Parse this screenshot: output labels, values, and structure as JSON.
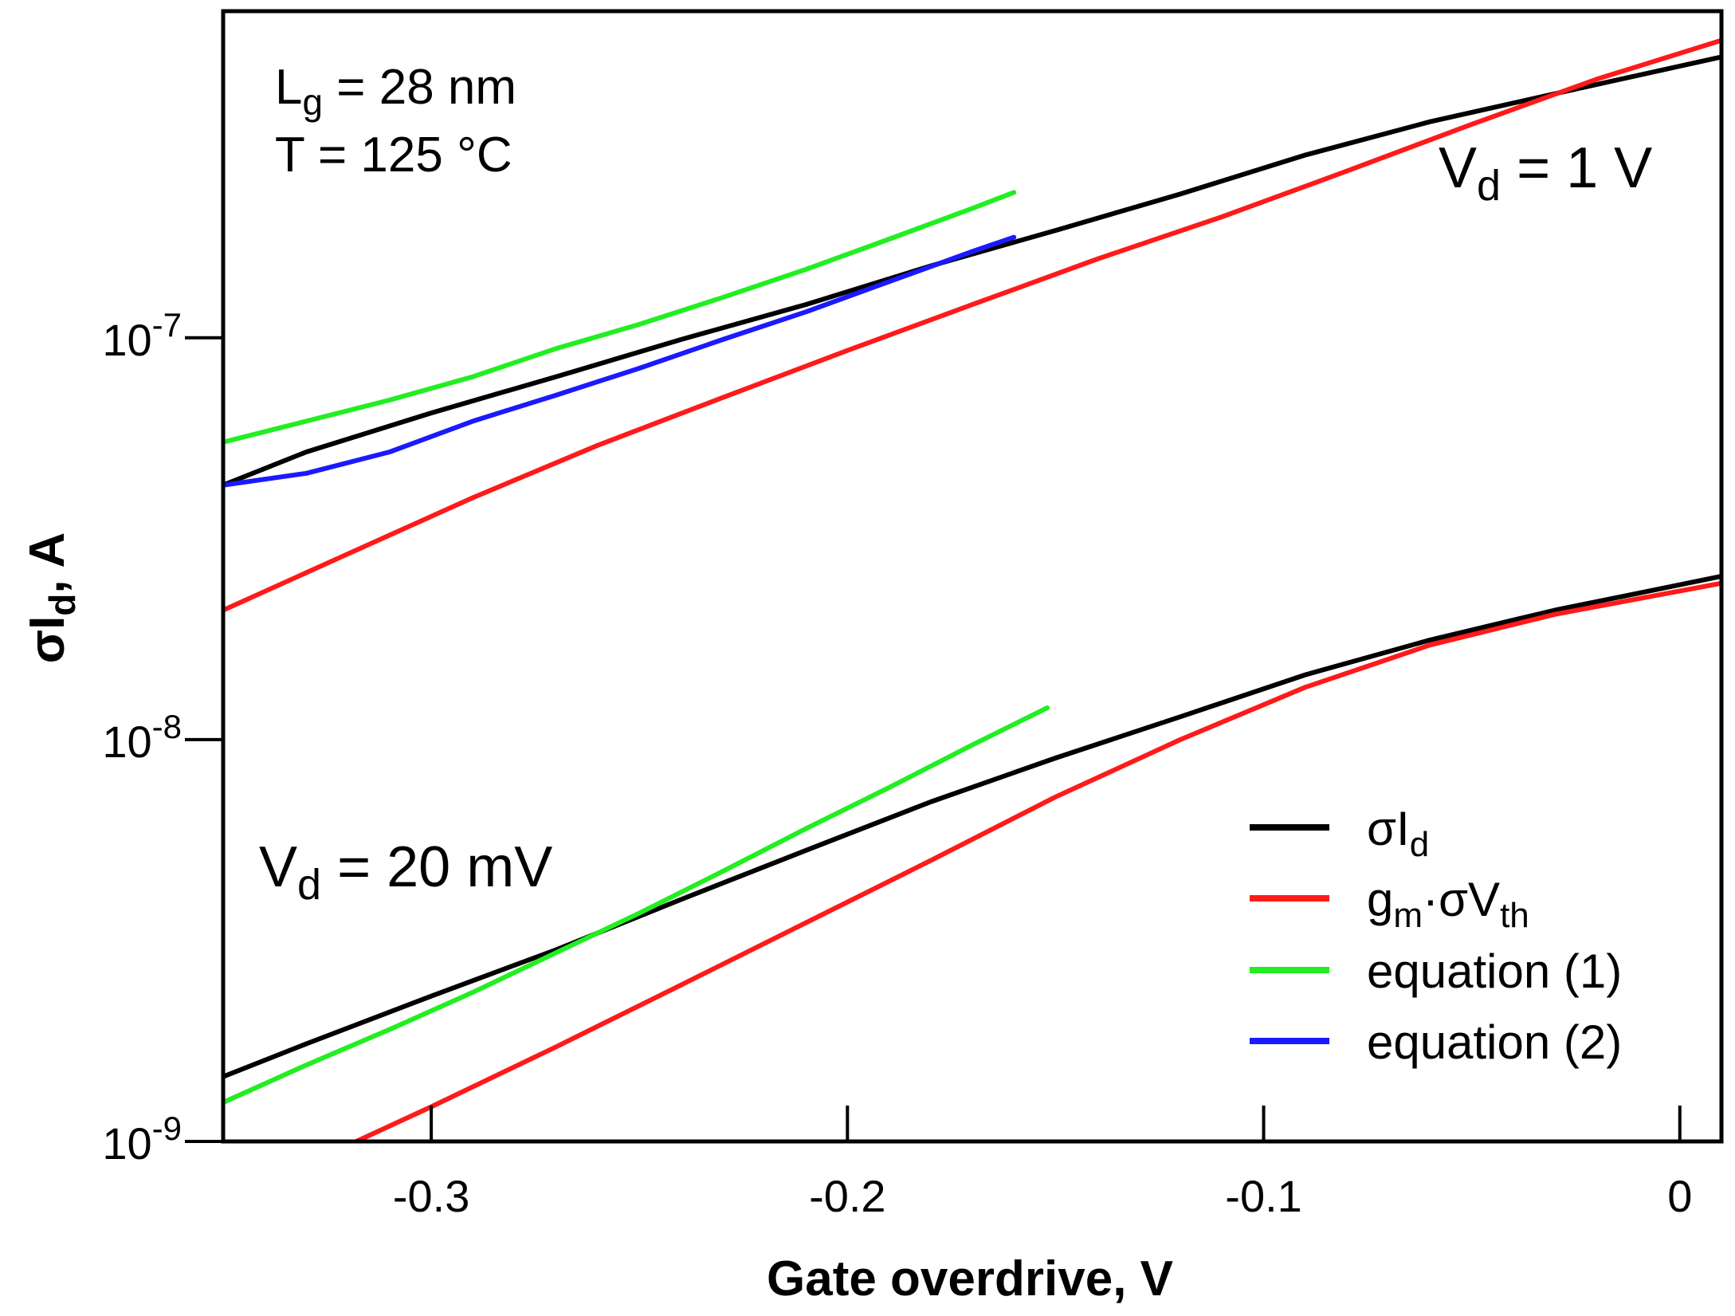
{
  "chart_data": {
    "type": "line",
    "title": "",
    "xlabel": "Gate overdrive, V",
    "ylabel_main": "σI",
    "ylabel_sub": "d",
    "ylabel_suffix": ", A",
    "yscale": "log",
    "xlim": [
      -0.35,
      0.01
    ],
    "ylim": [
      1e-09,
      6.5e-07
    ],
    "grid": false,
    "x_ticks": [
      {
        "value": -0.3,
        "label": "-0.3"
      },
      {
        "value": -0.2,
        "label": "-0.2"
      },
      {
        "value": -0.1,
        "label": "-0.1"
      },
      {
        "value": 0,
        "label": "0"
      }
    ],
    "y_ticks": [
      {
        "value": 1e-09,
        "base": "10",
        "exp": "-9"
      },
      {
        "value": 1e-08,
        "base": "10",
        "exp": "-8"
      },
      {
        "value": 1e-07,
        "base": "10",
        "exp": "-7"
      }
    ],
    "annotations": {
      "lg": {
        "main": "L",
        "sub": "g",
        "rest": " = 28 nm"
      },
      "temp": {
        "text": "T = 125 °C"
      },
      "vd_high": {
        "main": "V",
        "sub": "d",
        "rest": " = 1 V"
      },
      "vd_low": {
        "main": "V",
        "sub": "d",
        "rest": " = 20 mV"
      }
    },
    "legend_position": "bottom-right",
    "legend": [
      {
        "main": "σI",
        "sub": "d",
        "mid": "",
        "sub2": "",
        "color": "#000000"
      },
      {
        "main": "g",
        "sub": "m",
        "mid": "·σV",
        "sub2": "th",
        "color": "#ff1a1a"
      },
      {
        "main": "equation (1)",
        "sub": "",
        "mid": "",
        "sub2": "",
        "color": "#22ee22"
      },
      {
        "main": "equation (2)",
        "sub": "",
        "mid": "",
        "sub2": "",
        "color": "#1a1aff"
      }
    ],
    "series": [
      {
        "name": "σId (Vd = 1 V)",
        "color": "#000000",
        "x": [
          -0.35,
          -0.33,
          -0.3,
          -0.27,
          -0.24,
          -0.21,
          -0.18,
          -0.15,
          -0.12,
          -0.09,
          -0.06,
          -0.03,
          0.01
        ],
        "y": [
          4.3e-08,
          5.2e-08,
          6.5e-08,
          8e-08,
          9.9e-08,
          1.21e-07,
          1.51e-07,
          1.85e-07,
          2.28e-07,
          2.85e-07,
          3.45e-07,
          4.05e-07,
          5e-07
        ]
      },
      {
        "name": "gm·σVth (Vd = 1 V)",
        "color": "#ff1a1a",
        "x": [
          -0.35,
          -0.32,
          -0.29,
          -0.26,
          -0.23,
          -0.2,
          -0.17,
          -0.14,
          -0.11,
          -0.08,
          -0.05,
          -0.02,
          0.01
        ],
        "y": [
          2.1e-08,
          2.9e-08,
          4e-08,
          5.4e-08,
          7.1e-08,
          9.3e-08,
          1.21e-07,
          1.57e-07,
          2e-07,
          2.6e-07,
          3.4e-07,
          4.4e-07,
          5.5e-07
        ]
      },
      {
        "name": "equation (1) (Vd = 1 V)",
        "color": "#22ee22",
        "x": [
          -0.35,
          -0.33,
          -0.31,
          -0.29,
          -0.27,
          -0.25,
          -0.23,
          -0.21,
          -0.19,
          -0.17,
          -0.16
        ],
        "y": [
          5.5e-08,
          6.2e-08,
          7e-08,
          8e-08,
          9.4e-08,
          1.08e-07,
          1.26e-07,
          1.48e-07,
          1.76e-07,
          2.1e-07,
          2.3e-07
        ]
      },
      {
        "name": "equation (2) (Vd = 1 V)",
        "color": "#1a1aff",
        "x": [
          -0.35,
          -0.33,
          -0.31,
          -0.29,
          -0.27,
          -0.25,
          -0.23,
          -0.21,
          -0.19,
          -0.17,
          -0.16
        ],
        "y": [
          4.3e-08,
          4.6e-08,
          5.2e-08,
          6.2e-08,
          7.2e-08,
          8.4e-08,
          9.9e-08,
          1.16e-07,
          1.38e-07,
          1.64e-07,
          1.78e-07
        ]
      },
      {
        "name": "σId (Vd = 20 mV)",
        "color": "#000000",
        "x": [
          -0.35,
          -0.33,
          -0.3,
          -0.27,
          -0.24,
          -0.21,
          -0.18,
          -0.15,
          -0.12,
          -0.09,
          -0.06,
          -0.03,
          0.01
        ],
        "y": [
          1.45e-09,
          1.75e-09,
          2.3e-09,
          3e-09,
          4e-09,
          5.3e-09,
          7e-09,
          9e-09,
          1.14e-08,
          1.45e-08,
          1.77e-08,
          2.1e-08,
          2.55e-08
        ]
      },
      {
        "name": "gm·σVth (Vd = 20 mV)",
        "color": "#ff1a1a",
        "x": [
          -0.318,
          -0.3,
          -0.27,
          -0.24,
          -0.21,
          -0.18,
          -0.15,
          -0.12,
          -0.09,
          -0.06,
          -0.03,
          0.01
        ],
        "y": [
          1e-09,
          1.22e-09,
          1.72e-09,
          2.45e-09,
          3.5e-09,
          5e-09,
          7.2e-09,
          1e-08,
          1.35e-08,
          1.72e-08,
          2.05e-08,
          2.45e-08
        ]
      },
      {
        "name": "equation (1) (Vd = 20 mV)",
        "color": "#22ee22",
        "x": [
          -0.35,
          -0.33,
          -0.31,
          -0.29,
          -0.27,
          -0.25,
          -0.23,
          -0.21,
          -0.19,
          -0.17,
          -0.152
        ],
        "y": [
          1.25e-09,
          1.55e-09,
          1.9e-09,
          2.35e-09,
          2.95e-09,
          3.7e-09,
          4.7e-09,
          6e-09,
          7.6e-09,
          9.7e-09,
          1.2e-08
        ]
      }
    ]
  }
}
